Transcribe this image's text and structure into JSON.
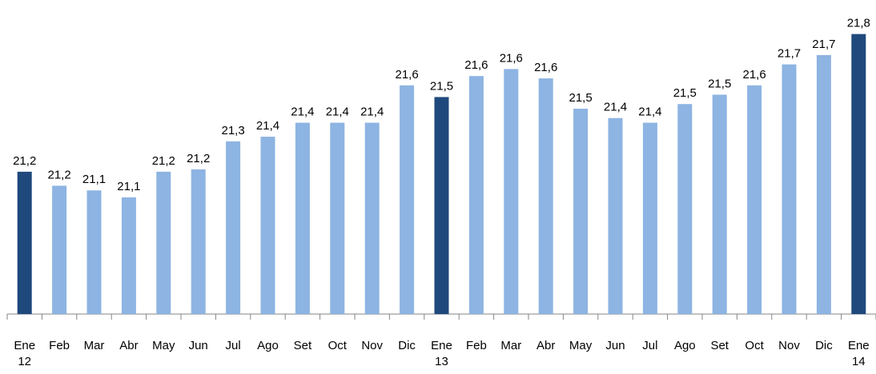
{
  "chart_data": {
    "type": "bar",
    "categories": [
      "Ene 12",
      "Feb",
      "Mar",
      "Abr",
      "May",
      "Jun",
      "Jul",
      "Ago",
      "Set",
      "Oct",
      "Nov",
      "Dic",
      "Ene 13",
      "Feb",
      "Mar",
      "Abr",
      "May",
      "Jun",
      "Jul",
      "Ago",
      "Set",
      "Oct",
      "Nov",
      "Dic",
      "Ene 14"
    ],
    "values": [
      21.21,
      21.15,
      21.13,
      21.1,
      21.21,
      21.22,
      21.34,
      21.36,
      21.42,
      21.42,
      21.42,
      21.58,
      21.53,
      21.62,
      21.65,
      21.61,
      21.48,
      21.44,
      21.42,
      21.5,
      21.54,
      21.58,
      21.67,
      21.71,
      21.8
    ],
    "value_labels": [
      "21,2",
      "21,2",
      "21,1",
      "21,1",
      "21,2",
      "21,2",
      "21,3",
      "21,4",
      "21,4",
      "21,4",
      "21,4",
      "21,6",
      "21,5",
      "21,6",
      "21,6",
      "21,6",
      "21,5",
      "21,4",
      "21,4",
      "21,5",
      "21,5",
      "21,6",
      "21,7",
      "21,7",
      "21,8"
    ],
    "colors": [
      "#1f497d",
      "#8db4e2",
      "#8db4e2",
      "#8db4e2",
      "#8db4e2",
      "#8db4e2",
      "#8db4e2",
      "#8db4e2",
      "#8db4e2",
      "#8db4e2",
      "#8db4e2",
      "#8db4e2",
      "#1f497d",
      "#8db4e2",
      "#8db4e2",
      "#8db4e2",
      "#8db4e2",
      "#8db4e2",
      "#8db4e2",
      "#8db4e2",
      "#8db4e2",
      "#8db4e2",
      "#8db4e2",
      "#8db4e2",
      "#1f497d"
    ],
    "ylim": [
      20.6,
      21.85
    ]
  }
}
